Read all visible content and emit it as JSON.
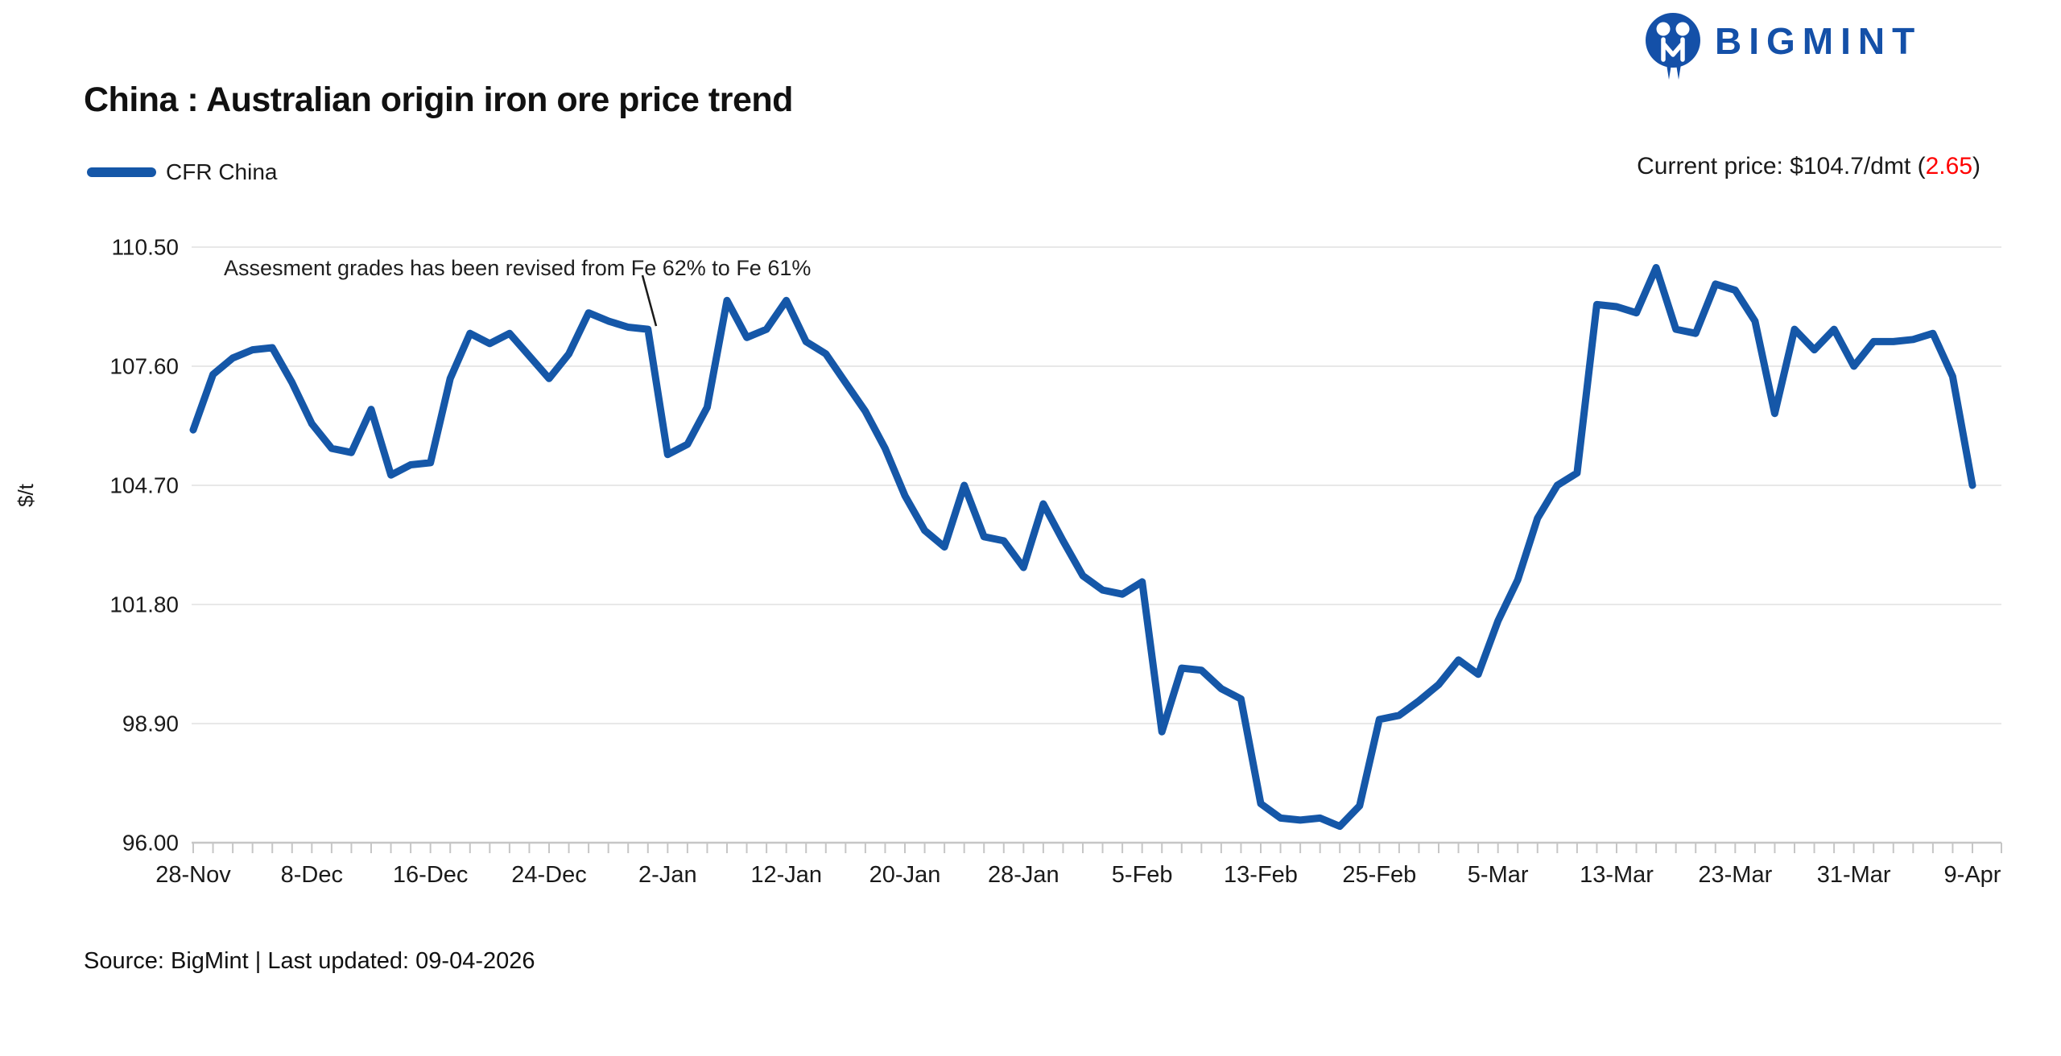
{
  "header": {
    "title": "China : Australian origin iron ore price trend",
    "brand": "BIGMINT"
  },
  "legend": {
    "series_label": "CFR China",
    "position": "top-left"
  },
  "current_price": {
    "prefix": "Current price: $104.7/dmt (",
    "change": "2.65",
    "suffix": ")"
  },
  "annotation": {
    "text": "Assesment grades has been revised from Fe 62% to Fe 61%"
  },
  "footer": {
    "text": "Source: BigMint | Last updated: 09-04-2026"
  },
  "colors": {
    "line_blue": "#1557A8",
    "logo_blue": "#1450A8",
    "negative_red": "#FF0000",
    "grid_gray": "#E8E8E8",
    "axis_gray": "#C6C6C6",
    "text_dark": "#1A1A1A"
  },
  "chart_data": {
    "type": "line",
    "title": "China : Australian origin iron ore price trend",
    "ylabel": "$/t",
    "xlabel": "",
    "series_name": "CFR China",
    "ylim": [
      96.0,
      110.5
    ],
    "ytick_labels": [
      "110.50",
      "107.60",
      "104.70",
      "101.80",
      "98.90",
      "96.00"
    ],
    "yticks": [
      110.5,
      107.6,
      104.7,
      101.8,
      98.9,
      96.0
    ],
    "x_labels": [
      "28-Nov",
      "8-Dec",
      "16-Dec",
      "24-Dec",
      "2-Jan",
      "12-Jan",
      "20-Jan",
      "28-Jan",
      "5-Feb",
      "13-Feb",
      "25-Feb",
      "5-Mar",
      "13-Mar",
      "23-Mar",
      "31-Mar",
      "9-Apr"
    ],
    "x_label_every": 6,
    "grid": "horizontal",
    "values": [
      106.05,
      107.4,
      107.8,
      108.0,
      108.05,
      107.2,
      106.2,
      105.6,
      105.5,
      106.55,
      104.95,
      105.2,
      105.25,
      107.3,
      108.4,
      108.15,
      108.4,
      107.85,
      107.3,
      107.9,
      108.9,
      108.7,
      108.55,
      108.5,
      105.45,
      105.7,
      106.6,
      109.2,
      108.3,
      108.5,
      109.2,
      108.2,
      107.9,
      107.2,
      106.5,
      105.6,
      104.45,
      103.6,
      103.2,
      104.7,
      103.45,
      103.35,
      102.7,
      104.25,
      103.35,
      102.5,
      102.15,
      102.05,
      102.35,
      98.7,
      100.25,
      100.2,
      99.75,
      99.5,
      96.95,
      96.6,
      96.55,
      96.6,
      96.4,
      96.9,
      99.0,
      99.1,
      99.45,
      99.85,
      100.45,
      100.1,
      101.4,
      102.4,
      103.9,
      104.7,
      105.0,
      109.1,
      109.05,
      108.9,
      110.0,
      108.5,
      108.4,
      109.6,
      109.45,
      108.7,
      106.45,
      108.5,
      108.0,
      108.5,
      107.6,
      108.2,
      108.2,
      108.25,
      108.4,
      107.35,
      104.7
    ]
  }
}
